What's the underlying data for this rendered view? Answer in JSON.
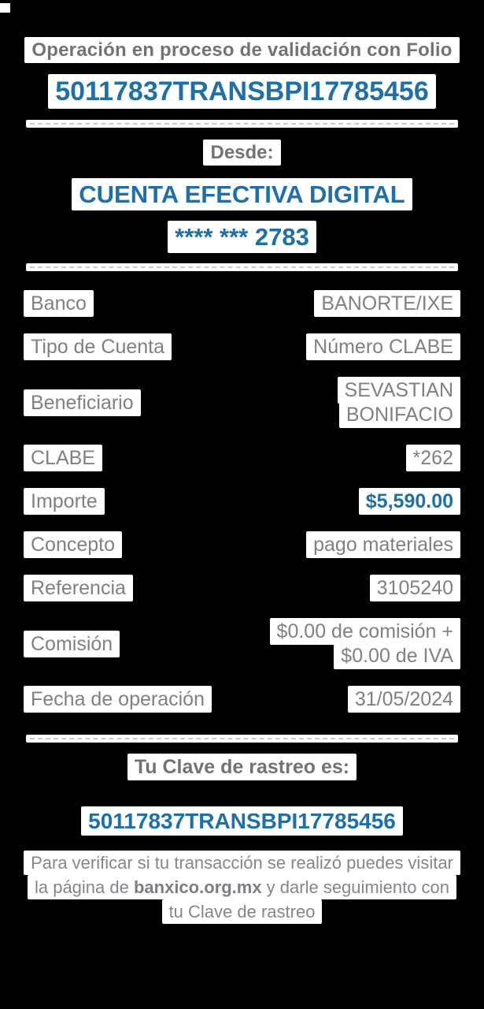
{
  "colors": {
    "background": "#000000",
    "highlight": "#FFFFFF",
    "accent_blue": "#1F6FA8",
    "text_gray": "#7D8186",
    "divider_dash": "#C7CACC"
  },
  "header": {
    "status_line": "Operación en proceso de validación con Folio",
    "folio": "50117837TRANSBPI17785456"
  },
  "source": {
    "label": "Desde:",
    "account_name": "CUENTA EFECTIVA DIGITAL",
    "account_mask": "**** *** 2783"
  },
  "details": {
    "rows": [
      {
        "label": "Banco",
        "value": "BANORTE/IXE"
      },
      {
        "label": "Tipo de Cuenta",
        "value": "Número CLABE"
      },
      {
        "label": "Beneficiario",
        "value": "SEVASTIAN\nBONIFACIO"
      },
      {
        "label": "CLABE",
        "value": "*262"
      },
      {
        "label": "Importe",
        "value": "$5,590.00"
      },
      {
        "label": "Concepto",
        "value": "pago materiales"
      },
      {
        "label": "Referencia",
        "value": "3105240"
      },
      {
        "label": "Comisión",
        "value": "$0.00 de comisión +\n$0.00 de IVA"
      },
      {
        "label": "Fecha de operación",
        "value": "31/05/2024"
      }
    ]
  },
  "footer": {
    "tracking_title": "Tu Clave de rastreo es:",
    "tracking_key": "50117837TRANSBPI17785456",
    "note_before": "Para verificar si tu transacción se realizó puedes visitar la página de ",
    "note_link": "banxico.org.mx",
    "note_after": " y darle seguimiento con tu Clave de rastreo"
  }
}
